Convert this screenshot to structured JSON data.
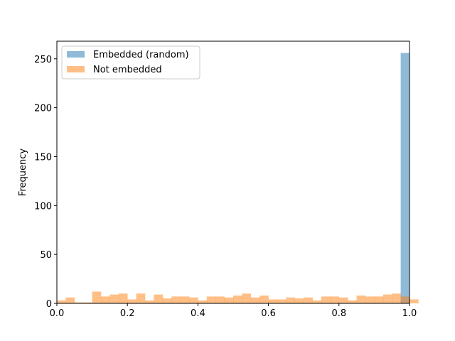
{
  "chart_data": {
    "type": "bar",
    "chart_kind": "histogram",
    "title": "",
    "xlabel": "",
    "ylabel": "Frequency",
    "xlim": [
      0.0,
      1.0
    ],
    "ylim": [
      0,
      268
    ],
    "grid": false,
    "legend": "top-left",
    "x_ticks": [
      0.0,
      0.2,
      0.4,
      0.6,
      0.8,
      1.0
    ],
    "x_tick_labels": [
      "0.0",
      "0.2",
      "0.4",
      "0.6",
      "0.8",
      "1.0"
    ],
    "y_ticks": [
      0,
      50,
      100,
      150,
      200,
      250
    ],
    "y_tick_labels": [
      "0",
      "50",
      "100",
      "150",
      "200",
      "250"
    ],
    "series": [
      {
        "name": "Embedded (random)",
        "color": "#1f77b4",
        "alpha": 0.5,
        "bin_edges": [
          0.975,
          1.0
        ],
        "counts": [
          256
        ]
      },
      {
        "name": "Not embedded",
        "color": "#ff7f0e",
        "alpha": 0.5,
        "bin_width": 0.025,
        "bin_start": 0.0,
        "counts": [
          3,
          6,
          1,
          1,
          12,
          7,
          9,
          10,
          4,
          10,
          3,
          9,
          5,
          7,
          7,
          6,
          3,
          7,
          7,
          6,
          8,
          10,
          6,
          8,
          4,
          4,
          6,
          5,
          6,
          3,
          7,
          7,
          6,
          3,
          8,
          7,
          7,
          9,
          10,
          7,
          4
        ]
      }
    ]
  }
}
